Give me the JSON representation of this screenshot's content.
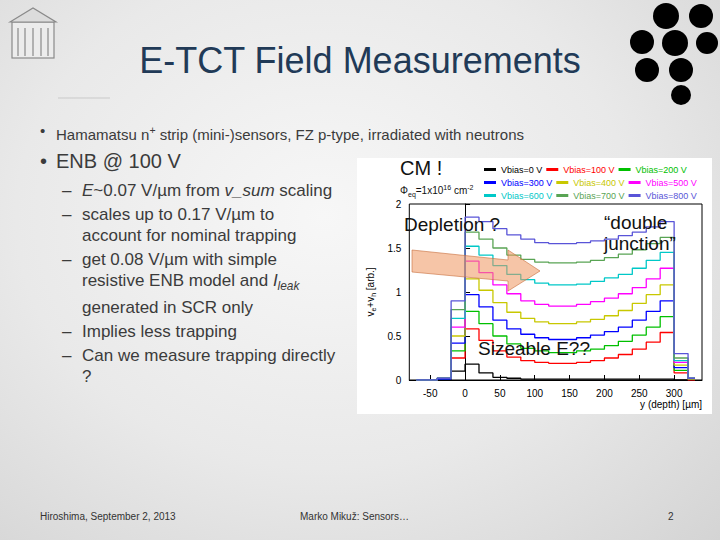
{
  "slide": {
    "title": "E-TCT Field Measurements",
    "bullet_marks": {
      "main": "•",
      "sub": "–"
    },
    "bullets": [
      [
        {
          "t": "Hamamatsu n"
        },
        {
          "t": "+",
          "sup": true
        },
        {
          "t": " strip (mini-)sensors, FZ p-type, irradiated with neutrons"
        }
      ],
      [
        {
          "t": "ENB @ 100 V"
        }
      ]
    ],
    "sub_bullets": [
      [
        {
          "t": "E",
          "i": true
        },
        {
          "t": "~0.07 V/µm from "
        },
        {
          "t": "v_sum",
          "i": true
        },
        {
          "t": " scaling"
        }
      ],
      [
        {
          "t": "scales up to 0.17 V/µm to account for nominal trapping"
        }
      ],
      [
        {
          "t": "get 0.08 V/µm with simple resistive ENB model and "
        },
        {
          "t": "I",
          "i": true
        },
        {
          "t": "leak",
          "i": true,
          "sub": true
        },
        {
          "t": " generated in SCR only"
        }
      ],
      [
        {
          "t": "Implies less trapping"
        }
      ],
      [
        {
          "t": "Can we measure trapping directly ?"
        }
      ]
    ],
    "footer": {
      "left": "Hiroshima, September 2, 2013",
      "center": "Marko Mikuž: Sensors…",
      "right": "2"
    }
  },
  "chart_data": {
    "type": "line",
    "line_style": "step",
    "x_label": "y (depth) [µm]",
    "y_label": [
      {
        "t": "v"
      },
      {
        "t": "e",
        "sub": true
      },
      {
        "t": "+v"
      },
      {
        "t": "h",
        "sub": true
      },
      {
        "t": " [arb.]"
      }
    ],
    "annotations": {
      "cm": "CM !",
      "depletion": "Depletion ?",
      "double_junction": "“double junction”",
      "sizeable": "Sizeable E??"
    },
    "fluence_label": {
      "symbol": "Φ",
      "sub": "eq",
      "text": "=1x10",
      "sup": "16",
      "unit": " cm",
      "unit_sup": "-2"
    },
    "legend": "top",
    "grid": false,
    "xlim": [
      -80,
      340
    ],
    "xticks": [
      -50,
      0,
      50,
      100,
      150,
      200,
      250,
      300
    ],
    "ylim": [
      0,
      2
    ],
    "yticks": [
      0,
      0.5,
      1,
      1.5,
      2
    ],
    "x": [
      -70,
      -50,
      -30,
      -10,
      10,
      30,
      50,
      70,
      90,
      110,
      130,
      150,
      170,
      190,
      210,
      230,
      250,
      270,
      290,
      310,
      330
    ],
    "series": [
      {
        "name": "Vbias=0 V",
        "color": "#000000",
        "values": [
          0,
          0,
          0,
          0.1,
          0.18,
          0.08,
          0.03,
          0.02,
          0.01,
          0.01,
          0.01,
          0.01,
          0.01,
          0.01,
          0.01,
          0.01,
          0.01,
          0.01,
          0.01,
          0,
          0
        ]
      },
      {
        "name": "Vbias=100 V",
        "color": "#ff0000",
        "values": [
          0,
          0,
          0.01,
          0.25,
          0.58,
          0.45,
          0.33,
          0.26,
          0.22,
          0.2,
          0.19,
          0.19,
          0.2,
          0.22,
          0.25,
          0.29,
          0.35,
          0.43,
          0.54,
          0.08,
          0
        ]
      },
      {
        "name": "Vbias=200 V",
        "color": "#00c000",
        "values": [
          0,
          0,
          0.01,
          0.33,
          0.78,
          0.64,
          0.5,
          0.41,
          0.36,
          0.33,
          0.31,
          0.31,
          0.33,
          0.35,
          0.39,
          0.44,
          0.51,
          0.6,
          0.72,
          0.11,
          0.01
        ]
      },
      {
        "name": "Vbias=300 V",
        "color": "#0000ff",
        "values": [
          0,
          0,
          0.01,
          0.42,
          0.97,
          0.83,
          0.68,
          0.58,
          0.52,
          0.48,
          0.46,
          0.46,
          0.48,
          0.51,
          0.55,
          0.6,
          0.68,
          0.78,
          0.9,
          0.14,
          0.01
        ]
      },
      {
        "name": "Vbias=400 V",
        "color": "#c8c800",
        "values": [
          0,
          0,
          0.02,
          0.5,
          1.15,
          1.02,
          0.88,
          0.77,
          0.7,
          0.66,
          0.64,
          0.64,
          0.66,
          0.69,
          0.73,
          0.79,
          0.87,
          0.97,
          1.08,
          0.17,
          0.01
        ]
      },
      {
        "name": "Vbias=500 V",
        "color": "#ff00ff",
        "values": [
          0,
          0,
          0.02,
          0.6,
          1.35,
          1.22,
          1.08,
          0.98,
          0.9,
          0.86,
          0.84,
          0.84,
          0.86,
          0.89,
          0.93,
          0.98,
          1.05,
          1.15,
          1.27,
          0.2,
          0.02
        ]
      },
      {
        "name": "Vbias=600 V",
        "color": "#00c8c8",
        "values": [
          0,
          0,
          0.02,
          0.7,
          1.52,
          1.42,
          1.3,
          1.2,
          1.14,
          1.1,
          1.08,
          1.08,
          1.09,
          1.12,
          1.16,
          1.2,
          1.27,
          1.36,
          1.45,
          0.22,
          0.02
        ]
      },
      {
        "name": "Vbias=700 V",
        "color": "#59a454",
        "values": [
          0,
          0,
          0.02,
          0.8,
          1.68,
          1.6,
          1.5,
          1.42,
          1.37,
          1.34,
          1.33,
          1.33,
          1.34,
          1.36,
          1.39,
          1.43,
          1.48,
          1.55,
          1.62,
          0.25,
          0.02
        ]
      },
      {
        "name": "Vbias=800 V",
        "color": "#5954d8",
        "values": [
          0,
          0,
          0.02,
          0.9,
          1.85,
          1.8,
          1.72,
          1.65,
          1.6,
          1.56,
          1.55,
          1.55,
          1.56,
          1.58,
          1.6,
          1.64,
          1.68,
          1.74,
          1.8,
          0.3,
          0.02
        ]
      }
    ]
  }
}
